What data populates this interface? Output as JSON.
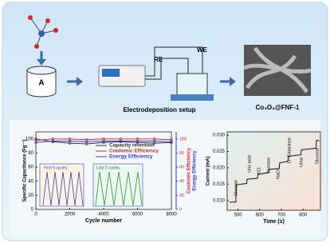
{
  "diagram": {
    "vial_label": "A",
    "re_label": "RE",
    "we_label": "WE",
    "setup_label": "Electrodeposition setup",
    "product_label": "Co₃O₄@FNF-1"
  },
  "chart_data": [
    {
      "type": "line",
      "x_label": "Cycle number",
      "y_label": "Specific Capacitance (Fg⁻¹)",
      "y2_label_1": "Coulomic Efficiency",
      "y2_label_2": "Energy Efficiency",
      "inset_1": "First 5 cycles",
      "inset_2": "Last 5 cycles",
      "x": [
        0,
        1000,
        2000,
        3000,
        4000,
        5000,
        6000,
        7000,
        8000
      ],
      "series": [
        {
          "name": "Capacity retention",
          "color": "#333333",
          "values": [
            100,
            96,
            94,
            93,
            95,
            96,
            95,
            94,
            95
          ]
        },
        {
          "name": "Coulomic Efficiency",
          "color": "#e8262a",
          "axis": "y2",
          "values": [
            98,
            100,
            100,
            99,
            100,
            100,
            100,
            100,
            99
          ]
        },
        {
          "name": "Energy Efficiency",
          "color": "#2b3fd6",
          "axis": "y2",
          "values": [
            95,
            97,
            97,
            96,
            97,
            97,
            97,
            97,
            96
          ]
        }
      ],
      "xlim": [
        0,
        8000
      ],
      "xticks": [
        0,
        2000,
        4000,
        6000,
        8000
      ],
      "ylim": [
        0,
        110
      ],
      "yticks": [
        0,
        20,
        40,
        60,
        80,
        100
      ],
      "y2lim": [
        0,
        110
      ],
      "y2ticks": [
        0,
        20,
        40,
        60,
        80,
        100
      ]
    },
    {
      "type": "line",
      "x_label": "Time (s)",
      "y_label": "Current (mA)",
      "annotations": [
        "Glucose",
        "Uric acid",
        "KCl",
        "Sucrose",
        "NaCl",
        "D- Galactose",
        "Urea",
        "Glucose"
      ],
      "x": [
        460,
        490,
        492,
        540,
        542,
        590,
        592,
        640,
        642,
        690,
        692,
        730,
        732,
        790,
        792,
        860,
        862,
        875
      ],
      "series": [
        {
          "color": "#111111",
          "values": [
            0.0095,
            0.0095,
            0.0148,
            0.0152,
            0.0165,
            0.0168,
            0.018,
            0.0185,
            0.0195,
            0.0198,
            0.0215,
            0.022,
            0.0235,
            0.024,
            0.0255,
            0.026,
            0.0285,
            0.0282
          ]
        }
      ],
      "xlim": [
        450,
        880
      ],
      "xticks": [
        500,
        600,
        700,
        800
      ],
      "ylim": [
        0.007,
        0.031
      ],
      "yticks": [
        {
          "value": 0.01,
          "label": "0.010"
        },
        {
          "value": 0.015,
          "label": "0.015"
        },
        {
          "value": 0.02,
          "label": "0.020"
        },
        {
          "value": 0.025,
          "label": "0.025"
        },
        {
          "value": 0.03,
          "label": "0.030"
        }
      ]
    }
  ]
}
